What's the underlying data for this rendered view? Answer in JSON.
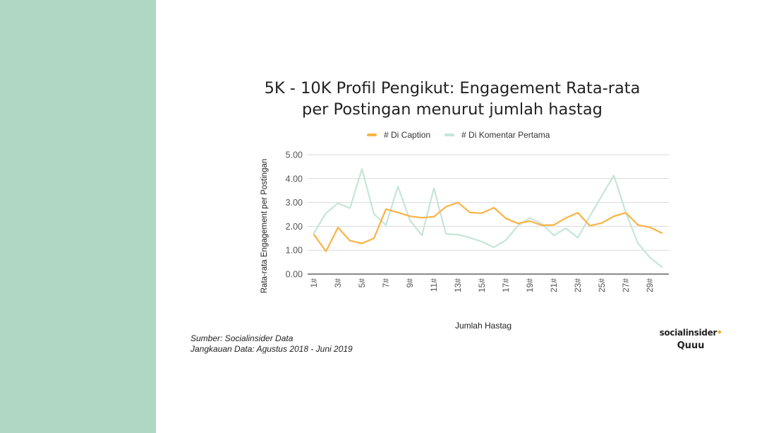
{
  "brand": {
    "side_color": "#b0d6c4",
    "logo_socialinsider": "socialinsider",
    "logo_quuu": "Quuu"
  },
  "footer": {
    "source_line": "Sumber: Socialinsider Data",
    "range_line": "Jangkauan Data: Agustus 2018 - Juni 2019"
  },
  "chart_data": {
    "type": "line",
    "title_line1": "5K - 10K Profil Pengikut: Engagement Rata-rata",
    "title_line2": "per Postingan menurut jumlah hastag",
    "xlabel": "Jumlah Hastag",
    "ylabel": "Rata-rata Engagement  per Postingan",
    "ylim": [
      0,
      5
    ],
    "yticks": [
      "0.00",
      "1.00",
      "2.00",
      "3.00",
      "4.00",
      "5.00"
    ],
    "grid": true,
    "legend_position": "top",
    "categories": [
      "1#",
      "2#",
      "3#",
      "4#",
      "5#",
      "6#",
      "7#",
      "8#",
      "9#",
      "10#",
      "11#",
      "12#",
      "13#",
      "14#",
      "15#",
      "16#",
      "17#",
      "18#",
      "19#",
      "20#",
      "21#",
      "22#",
      "23#",
      "24#",
      "25#",
      "26#",
      "27#",
      "28#",
      "29#",
      "30#"
    ],
    "tick_labels_shown": [
      "1#",
      "3#",
      "5#",
      "7#",
      "9#",
      "11#",
      "13#",
      "15#",
      "17#",
      "19#",
      "21#",
      "23#",
      "25#",
      "27#",
      "29#"
    ],
    "series": [
      {
        "name": "# Di Caption",
        "color": "#f9b344",
        "values": [
          1.65,
          0.95,
          1.95,
          1.4,
          1.28,
          1.5,
          2.72,
          2.58,
          2.42,
          2.36,
          2.4,
          2.82,
          3.0,
          2.58,
          2.55,
          2.78,
          2.33,
          2.12,
          2.22,
          2.04,
          2.06,
          2.35,
          2.57,
          2.02,
          2.14,
          2.42,
          2.57,
          2.06,
          1.96,
          1.72
        ]
      },
      {
        "name": "# Di Komentar Pertama",
        "color": "#c5e6d7",
        "values": [
          1.72,
          2.55,
          2.97,
          2.76,
          4.4,
          2.52,
          2.05,
          3.67,
          2.25,
          1.62,
          3.6,
          1.68,
          1.65,
          1.52,
          1.36,
          1.12,
          1.42,
          2.02,
          2.35,
          2.1,
          1.62,
          1.92,
          1.52,
          2.42,
          3.28,
          4.13,
          2.58,
          1.3,
          0.7,
          0.3
        ]
      }
    ]
  }
}
